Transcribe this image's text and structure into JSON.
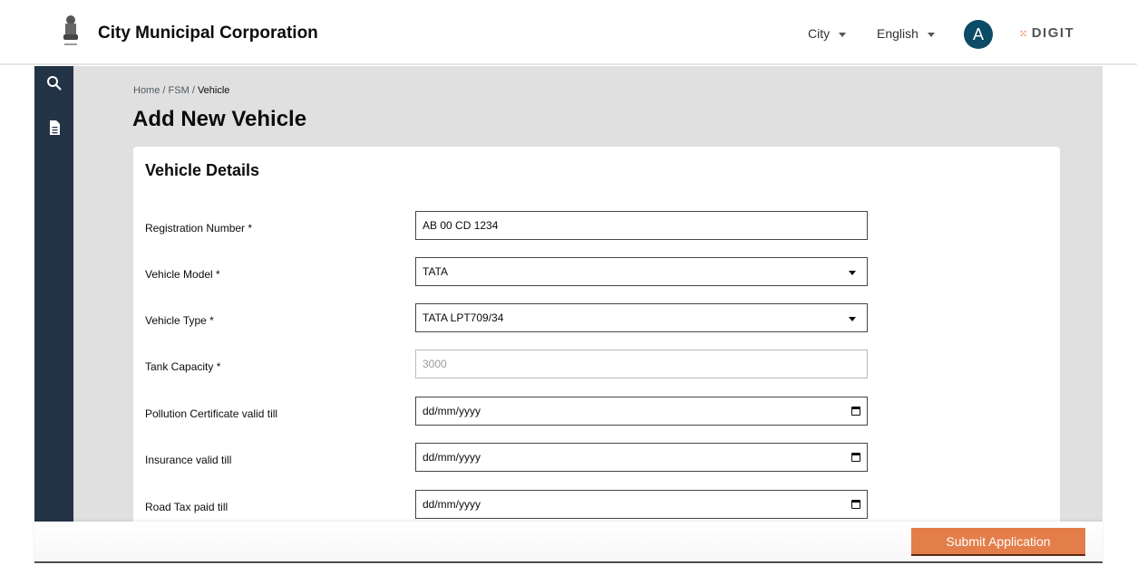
{
  "header": {
    "title": "City Municipal Corporation",
    "city": "City",
    "language": "English",
    "avatar": "A",
    "brand": "DIGIT",
    "brand_color": "#F47738"
  },
  "sidebar": {
    "items": [
      {
        "icon": "search-icon"
      },
      {
        "icon": "document-icon"
      }
    ]
  },
  "breadcrumb": {
    "home": "Home",
    "fsm": "FSM",
    "current": "Vehicle",
    "sep": "/"
  },
  "page_title": "Add New Vehicle",
  "card": {
    "title": "Vehicle Details",
    "fields": [
      {
        "label": "Registration Number *",
        "value": "AB 00 CD 1234"
      },
      {
        "label": "Vehicle Model *",
        "value": "TATA"
      },
      {
        "label": "Vehicle Type *",
        "value": "TATA LPT709/34"
      },
      {
        "label": "Tank Capacity *",
        "value": "3000"
      },
      {
        "label": "Pollution Certificate valid till",
        "value": "dd/mm/yyyy"
      },
      {
        "label": "Insurance valid till",
        "value": "dd/mm/yyyy"
      },
      {
        "label": "Road Tax paid till",
        "value": "dd/mm/yyyy"
      }
    ]
  },
  "footer": {
    "submit": "Submit Application",
    "submit_color": "#E37D4A"
  }
}
